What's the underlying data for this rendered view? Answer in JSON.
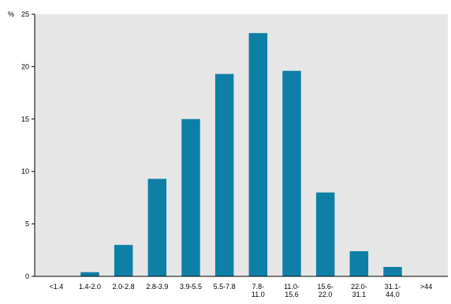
{
  "chart_data": {
    "type": "bar",
    "y_unit_label": "%",
    "categories": [
      [
        "<1.4"
      ],
      [
        "1.4-2.0"
      ],
      [
        "2.0-2.8"
      ],
      [
        "2.8-3.9"
      ],
      [
        "3.9-5.5"
      ],
      [
        "5.5-7.8"
      ],
      [
        "7.8-",
        "11.0"
      ],
      [
        "11.0-",
        "15.6"
      ],
      [
        "15.6-",
        "22.0"
      ],
      [
        "22.0-",
        "31.1"
      ],
      [
        "31.1-",
        "44.0"
      ],
      [
        ">44"
      ]
    ],
    "values": [
      0,
      0.4,
      3.0,
      9.3,
      15.0,
      19.3,
      23.2,
      19.6,
      8.0,
      2.4,
      0.9,
      0
    ],
    "ylim": [
      0,
      25
    ],
    "yticks": [
      0,
      5,
      10,
      15,
      20,
      25
    ],
    "grid": false,
    "colors": {
      "bar": "#0e7fa6",
      "plot_background": "#e6e6e6",
      "axis": "#000000"
    }
  }
}
